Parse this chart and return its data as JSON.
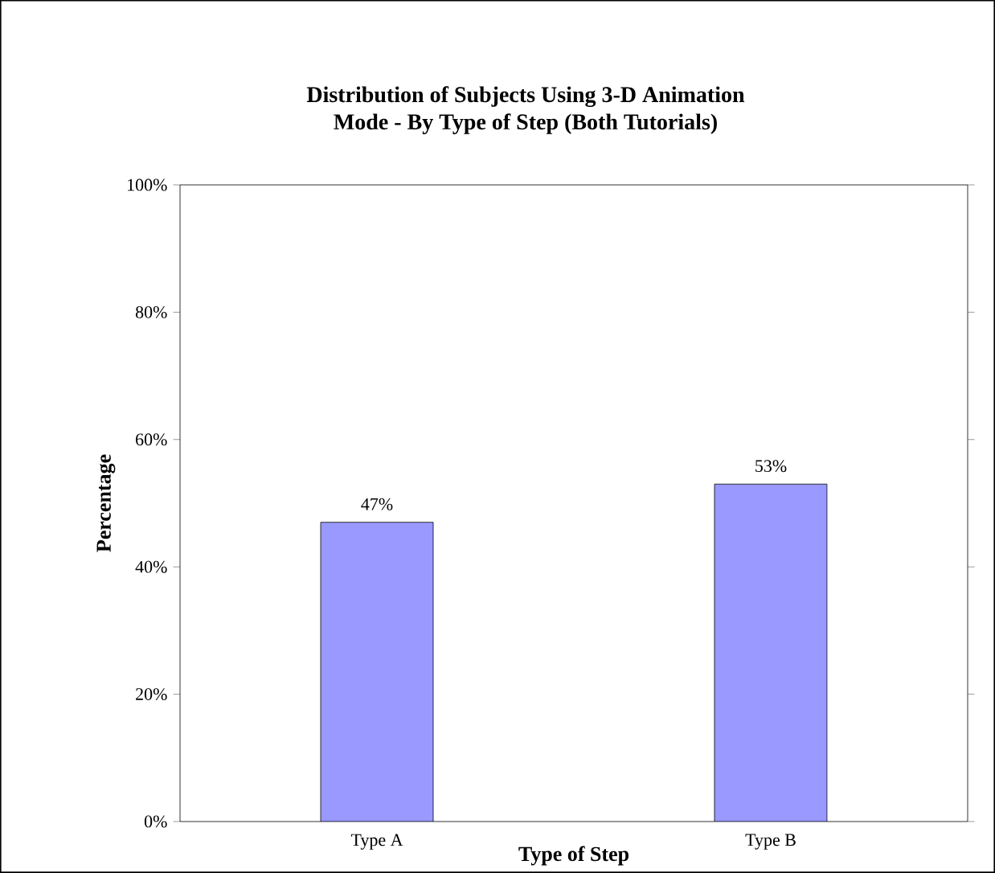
{
  "chart_data": {
    "type": "bar",
    "title": "Distribution of Subjects Using 3-D Animation\nMode - By Type of Step (Both Tutorials)",
    "xlabel": "Type of Step",
    "ylabel": "Percentage",
    "categories": [
      "Type A",
      "Type B"
    ],
    "values": [
      47,
      53
    ],
    "value_labels": [
      "47%",
      "53%"
    ],
    "color": "#9999ff",
    "ylim": [
      0,
      100
    ],
    "yticks": [
      {
        "value": 0,
        "label": "0%"
      },
      {
        "value": 20,
        "label": "20%"
      },
      {
        "value": 40,
        "label": "40%"
      },
      {
        "value": 60,
        "label": "60%"
      },
      {
        "value": 80,
        "label": "80%"
      },
      {
        "value": 100,
        "label": "100%"
      }
    ],
    "grid": false
  }
}
